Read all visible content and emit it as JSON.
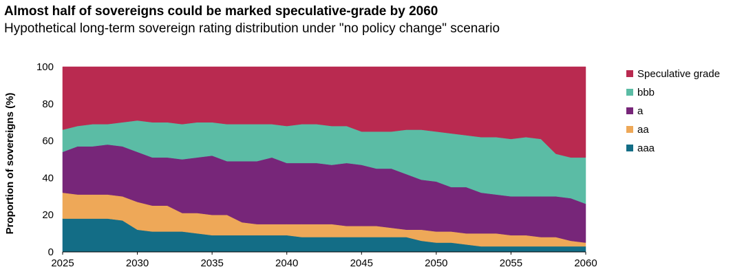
{
  "header": {
    "title": "Almost half of sovereigns could be marked speculative-grade by 2060",
    "subtitle": "Hypothetical long-term sovereign rating distribution under \"no policy change\" scenario"
  },
  "chart_data": {
    "type": "area",
    "stacked": true,
    "ylabel": "Proportion of sovereigns (%)",
    "xlabel": "",
    "xlim": [
      2025,
      2060
    ],
    "ylim": [
      0,
      100
    ],
    "x_ticks": [
      "2025",
      "2030",
      "2035",
      "2040",
      "2045",
      "2050",
      "2055",
      "2060"
    ],
    "y_ticks": [
      "0",
      "20",
      "40",
      "60",
      "80",
      "100"
    ],
    "grid": false,
    "legend_position": "right",
    "x": [
      2025,
      2026,
      2027,
      2028,
      2029,
      2030,
      2031,
      2032,
      2033,
      2034,
      2035,
      2036,
      2037,
      2038,
      2039,
      2040,
      2041,
      2042,
      2043,
      2044,
      2045,
      2046,
      2047,
      2048,
      2049,
      2050,
      2051,
      2052,
      2053,
      2054,
      2055,
      2056,
      2057,
      2058,
      2059,
      2060
    ],
    "series": [
      {
        "name": "aaa",
        "color": "#136d86",
        "values": [
          18,
          18,
          18,
          18,
          17,
          12,
          11,
          11,
          11,
          10,
          9,
          9,
          9,
          9,
          9,
          9,
          8,
          8,
          8,
          8,
          8,
          8,
          8,
          8,
          6,
          5,
          5,
          4,
          3,
          3,
          3,
          3,
          3,
          3,
          3,
          3
        ]
      },
      {
        "name": "aa",
        "color": "#eea858",
        "values": [
          14,
          13,
          13,
          13,
          13,
          15,
          14,
          14,
          10,
          11,
          11,
          11,
          7,
          6,
          6,
          6,
          7,
          7,
          7,
          6,
          6,
          6,
          5,
          4,
          6,
          6,
          6,
          6,
          7,
          7,
          6,
          6,
          5,
          5,
          3,
          2
        ]
      },
      {
        "name": "a",
        "color": "#772679",
        "values": [
          22,
          26,
          26,
          27,
          27,
          27,
          26,
          26,
          29,
          30,
          32,
          29,
          33,
          34,
          36,
          33,
          33,
          33,
          32,
          34,
          33,
          31,
          32,
          30,
          27,
          27,
          24,
          25,
          22,
          21,
          21,
          21,
          22,
          22,
          23,
          21
        ]
      },
      {
        "name": "bbb",
        "color": "#5bbca5",
        "values": [
          12,
          11,
          12,
          11,
          13,
          17,
          19,
          19,
          19,
          19,
          18,
          20,
          20,
          20,
          18,
          20,
          21,
          21,
          21,
          20,
          18,
          20,
          20,
          24,
          27,
          27,
          29,
          28,
          30,
          31,
          31,
          32,
          31,
          23,
          22,
          25
        ]
      },
      {
        "name": "Speculative grade",
        "color": "#b92a50",
        "values": [
          34,
          32,
          31,
          31,
          30,
          29,
          30,
          30,
          31,
          30,
          30,
          31,
          31,
          31,
          31,
          32,
          31,
          31,
          32,
          32,
          35,
          35,
          35,
          34,
          34,
          35,
          36,
          37,
          38,
          38,
          39,
          38,
          39,
          47,
          49,
          49
        ]
      }
    ]
  }
}
